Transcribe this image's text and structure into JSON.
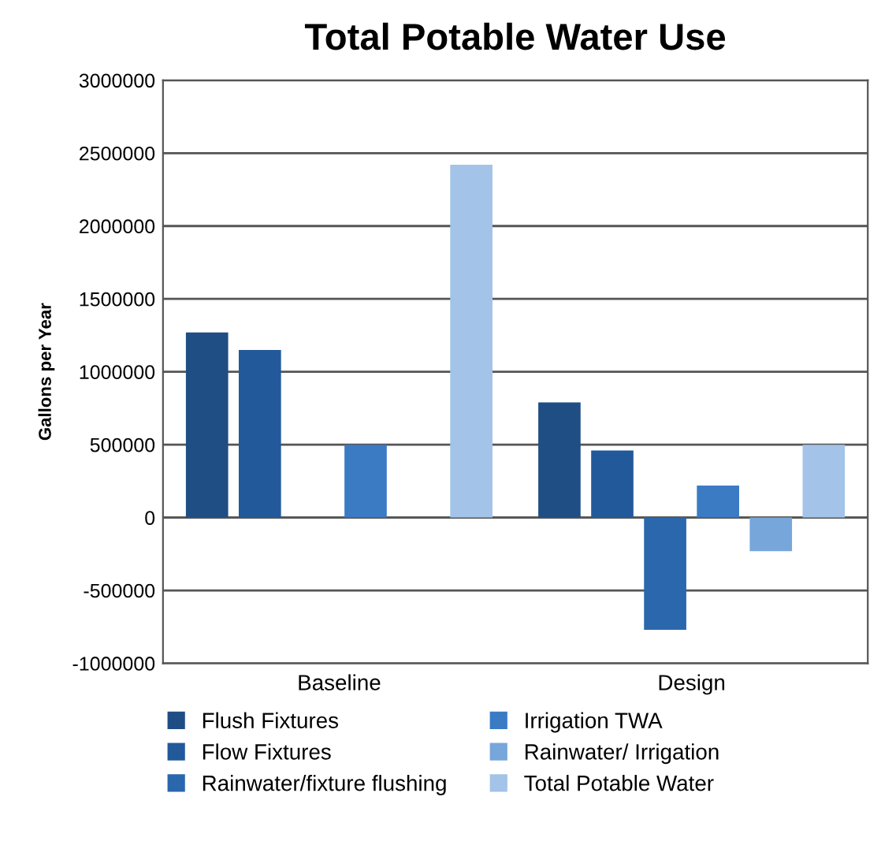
{
  "chart_data": {
    "type": "bar",
    "title": "Total Potable Water Use",
    "ylabel": "Gallons per Year",
    "categories": [
      "Baseline",
      "Design"
    ],
    "series": [
      {
        "name": "Flush Fixtures",
        "color": "#1f4e85",
        "values": [
          1270000,
          790000
        ]
      },
      {
        "name": "Flow Fixtures",
        "color": "#22599a",
        "values": [
          1150000,
          460000
        ]
      },
      {
        "name": "Rainwater/fixture flushing",
        "color": "#2a67ad",
        "values": [
          0,
          -770000
        ]
      },
      {
        "name": "Irrigation TWA",
        "color": "#3a7bc4",
        "values": [
          500000,
          220000
        ]
      },
      {
        "name": "Rainwater/ Irrigation",
        "color": "#77a6da",
        "values": [
          0,
          -230000
        ]
      },
      {
        "name": "Total Potable Water",
        "color": "#a3c3e8",
        "values": [
          2420000,
          500000
        ]
      }
    ],
    "ylim": [
      -1000000,
      3000000
    ],
    "yticks": [
      -1000000,
      -500000,
      0,
      500000,
      1000000,
      1500000,
      2000000,
      2500000,
      3000000
    ],
    "grid": "y",
    "legend": "bottom"
  }
}
